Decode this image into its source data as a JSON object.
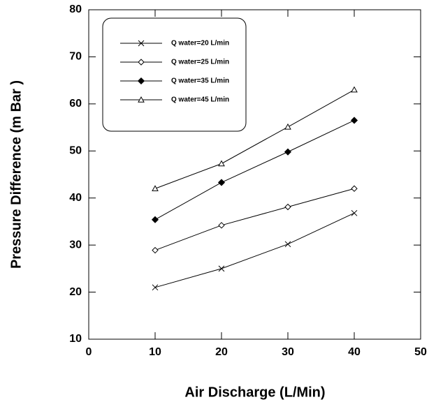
{
  "chart_data": {
    "type": "line",
    "x_label": "Air Discharge (L/Min)",
    "y_label": "Pressure Difference (m Bar )",
    "x": [
      10,
      20,
      30,
      40
    ],
    "series": [
      {
        "name": "Q water=20 L/min",
        "color": "#000000",
        "marker": "x",
        "values": [
          21.0,
          25.0,
          30.2,
          36.8
        ]
      },
      {
        "name": "Q water=25 L/min",
        "color": "#000000",
        "marker": "diamond",
        "values": [
          28.9,
          34.2,
          38.1,
          42.0
        ]
      },
      {
        "name": "Q water=35 L/min",
        "color": "#000000",
        "marker": "diamond-filled",
        "values": [
          35.4,
          43.3,
          49.8,
          56.5
        ]
      },
      {
        "name": "Q water=45 L/min",
        "color": "#000000",
        "marker": "triangle",
        "values": [
          42.0,
          47.3,
          55.1,
          63.0
        ]
      }
    ],
    "xlim": [
      0,
      50
    ],
    "xticks": [
      0,
      10,
      20,
      30,
      40,
      50
    ],
    "ylim": [
      10,
      80
    ],
    "yticks": [
      10,
      20,
      30,
      40,
      50,
      60,
      70,
      80
    ],
    "grid": false,
    "legend": "upper left"
  }
}
